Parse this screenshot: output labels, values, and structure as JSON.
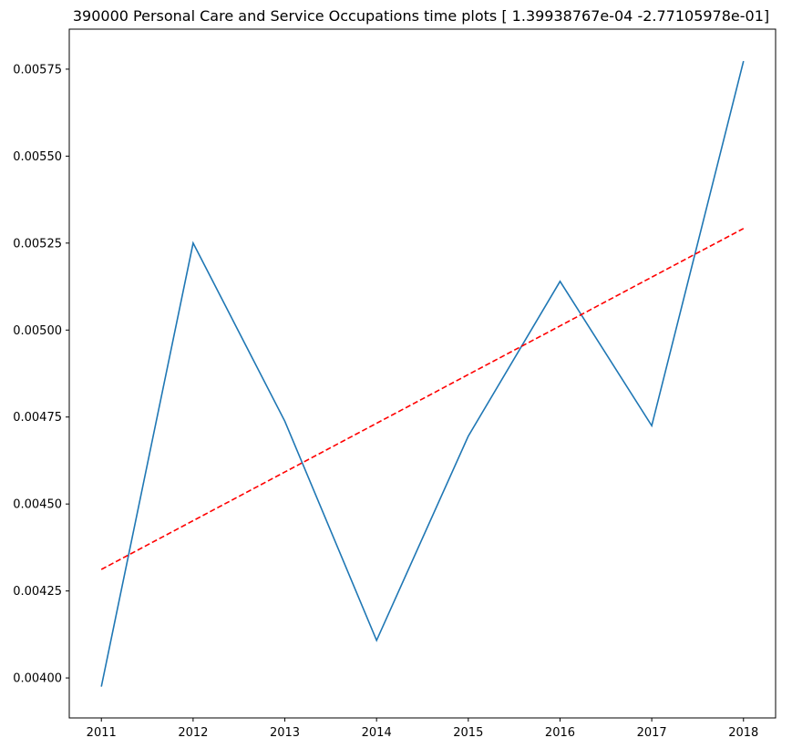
{
  "chart_data": {
    "type": "line",
    "title": "390000 Personal Care and Service Occupations time plots [ 1.39938767e-04 -2.77105978e-01]",
    "xlabel": "",
    "ylabel": "",
    "x": [
      2011,
      2012,
      2013,
      2014,
      2015,
      2016,
      2017,
      2018
    ],
    "xlim": [
      2010.65,
      2018.35
    ],
    "ylim": [
      0.003885,
      0.005865
    ],
    "x_ticks": [
      2011,
      2012,
      2013,
      2014,
      2015,
      2016,
      2017,
      2018
    ],
    "y_ticks": [
      "0.00400",
      "0.00425",
      "0.00450",
      "0.00475",
      "0.00500",
      "0.00525",
      "0.00550",
      "0.00575"
    ],
    "grid": false,
    "series": [
      {
        "style": "solid",
        "color": "#1f77b4",
        "values": [
          0.003975,
          0.00525,
          0.004738,
          0.004108,
          0.004695,
          0.00514,
          0.004725,
          0.005773
        ]
      },
      {
        "style": "dashed",
        "color": "#ff0000",
        "values": [
          0.004312,
          0.004452,
          0.004592,
          0.004732,
          0.004872,
          0.005012,
          0.005152,
          0.005292
        ]
      }
    ]
  }
}
